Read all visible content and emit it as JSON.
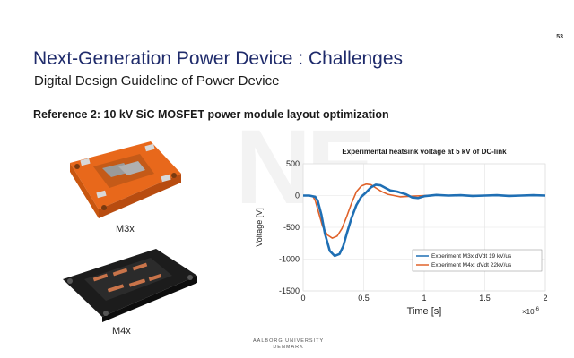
{
  "slide": {
    "page_number": "53",
    "title": "Next-Generation Power Device : Challenges",
    "subtitle": "Digital Design Guideline of Power Device",
    "reference": "Reference 2:  10 kV SiC MOSFET power module layout optimization",
    "watermark": "NE",
    "footer_line1": "AALBORG UNIVERSITY",
    "footer_line2": "DENMARK"
  },
  "images": {
    "m3x_caption": "M3x",
    "m4x_caption": "M4x",
    "m3x_color": "#f07a22",
    "m4x_color": "#222222"
  },
  "colors": {
    "title": "#1f2b6b",
    "series_m3x": "#1f6fb4",
    "series_m4x": "#e0622a"
  },
  "chart_data": {
    "type": "line",
    "title": "Experimental heatsink voltage at 5 kV of DC-link",
    "xlabel": "Time [s]",
    "ylabel": "Voltage [V]",
    "x_multiplier_label": "×10",
    "x_multiplier_exp": "-6",
    "xlim": [
      0,
      2
    ],
    "ylim": [
      -1500,
      500
    ],
    "xticks": [
      "0",
      "0.5",
      "1",
      "1.5",
      "2"
    ],
    "yticks": [
      "500",
      "0",
      "-500",
      "-1000",
      "-1500"
    ],
    "legend_position": "bottom-right",
    "series": [
      {
        "name": "Experiment M3x dVdt 19 kV/us",
        "color": "#1f6fb4",
        "x": [
          0,
          0.05,
          0.1,
          0.12,
          0.15,
          0.18,
          0.22,
          0.26,
          0.3,
          0.33,
          0.36,
          0.4,
          0.44,
          0.48,
          0.52,
          0.56,
          0.6,
          0.64,
          0.68,
          0.72,
          0.78,
          0.85,
          0.9,
          0.95,
          1.0,
          1.1,
          1.2,
          1.3,
          1.4,
          1.5,
          1.6,
          1.7,
          1.8,
          1.9,
          2.0
        ],
        "y": [
          0,
          0,
          -20,
          -80,
          -300,
          -600,
          -870,
          -950,
          -920,
          -800,
          -600,
          -350,
          -150,
          -20,
          50,
          130,
          170,
          160,
          120,
          80,
          60,
          20,
          -30,
          -40,
          -10,
          10,
          0,
          5,
          -5,
          0,
          5,
          -5,
          0,
          5,
          0
        ]
      },
      {
        "name": "Experiment M4x: dVdt 22kV/us",
        "color": "#e0622a",
        "x": [
          0,
          0.05,
          0.08,
          0.1,
          0.13,
          0.16,
          0.2,
          0.24,
          0.28,
          0.32,
          0.36,
          0.4,
          0.44,
          0.48,
          0.52,
          0.56,
          0.6,
          0.65,
          0.7,
          0.75,
          0.8,
          0.9,
          1.0,
          1.1,
          1.2,
          1.4,
          1.6,
          1.8,
          2.0
        ],
        "y": [
          0,
          0,
          -10,
          -80,
          -280,
          -480,
          -620,
          -670,
          -640,
          -520,
          -330,
          -120,
          60,
          150,
          180,
          170,
          120,
          60,
          20,
          0,
          -20,
          -10,
          0,
          5,
          0,
          0,
          0,
          0,
          0
        ]
      }
    ]
  }
}
